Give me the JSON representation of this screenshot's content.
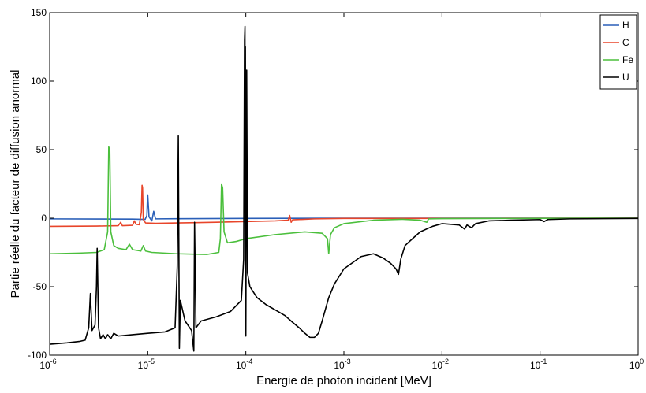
{
  "chart_data": {
    "type": "line",
    "xlabel": "Energie de photon incident [MeV]",
    "ylabel": "Partie réelle du facteur de diffusion anormal",
    "xscale": "log",
    "xlim": [
      1e-06,
      1
    ],
    "ylim": [
      -100,
      150
    ],
    "x_ticks": [
      {
        "base": "10",
        "exp": "-6"
      },
      {
        "base": "10",
        "exp": "-5"
      },
      {
        "base": "10",
        "exp": "-4"
      },
      {
        "base": "10",
        "exp": "-3"
      },
      {
        "base": "10",
        "exp": "-2"
      },
      {
        "base": "10",
        "exp": "-1"
      },
      {
        "base": "10",
        "exp": "0"
      }
    ],
    "y_ticks": [
      "-100",
      "-50",
      "0",
      "50",
      "100",
      "150"
    ],
    "grid": false,
    "legend_position": "top-right",
    "series": [
      {
        "name": "H",
        "color": "#2a5fb8",
        "points": [
          [
            1e-06,
            -0.5
          ],
          [
            3e-06,
            -0.6
          ],
          [
            7e-06,
            -0.7
          ],
          [
            9.4e-06,
            -0.9
          ],
          [
            9.8e-06,
            2
          ],
          [
            9.95e-06,
            17
          ],
          [
            1e-05,
            17
          ],
          [
            1.03e-05,
            1
          ],
          [
            1.1e-05,
            -2
          ],
          [
            1.15e-05,
            5
          ],
          [
            1.2e-05,
            -0.5
          ],
          [
            2e-05,
            -0.4
          ],
          [
            0.0001,
            -0.2
          ],
          [
            0.0003,
            -0.1
          ],
          [
            0.001,
            -0.05
          ],
          [
            1,
            0
          ]
        ]
      },
      {
        "name": "C",
        "color": "#e8452a",
        "points": [
          [
            1e-06,
            -6
          ],
          [
            3e-06,
            -5.8
          ],
          [
            5e-06,
            -5.5
          ],
          [
            5.3e-06,
            -3
          ],
          [
            5.5e-06,
            -5.5
          ],
          [
            7e-06,
            -5.2
          ],
          [
            7.3e-06,
            -2
          ],
          [
            7.6e-06,
            -4.5
          ],
          [
            8.2e-06,
            -4.8
          ],
          [
            8.6e-06,
            4
          ],
          [
            8.75e-06,
            24
          ],
          [
            8.85e-06,
            22
          ],
          [
            9e-06,
            -1
          ],
          [
            9.5e-06,
            -3.5
          ],
          [
            1.2e-05,
            -3.8
          ],
          [
            2e-05,
            -3.5
          ],
          [
            5e-05,
            -3
          ],
          [
            0.0001,
            -2.5
          ],
          [
            0.0002,
            -2
          ],
          [
            0.00027,
            -1.5
          ],
          [
            0.00028,
            2
          ],
          [
            0.00029,
            -3
          ],
          [
            0.0003,
            -1.2
          ],
          [
            0.0005,
            -0.5
          ],
          [
            0.001,
            -0.2
          ],
          [
            1,
            0
          ]
        ]
      },
      {
        "name": "Fe",
        "color": "#4bbf3c",
        "points": [
          [
            1e-06,
            -26
          ],
          [
            2e-06,
            -25.5
          ],
          [
            3e-06,
            -25
          ],
          [
            3.6e-06,
            -23
          ],
          [
            3.9e-06,
            -10
          ],
          [
            4e-06,
            52
          ],
          [
            4.1e-06,
            50
          ],
          [
            4.2e-06,
            -10
          ],
          [
            4.5e-06,
            -20
          ],
          [
            5e-06,
            -22
          ],
          [
            6e-06,
            -23
          ],
          [
            6.5e-06,
            -19
          ],
          [
            7e-06,
            -23
          ],
          [
            8.5e-06,
            -24
          ],
          [
            9e-06,
            -20
          ],
          [
            9.5e-06,
            -24
          ],
          [
            1.1e-05,
            -25
          ],
          [
            2e-05,
            -26
          ],
          [
            4e-05,
            -26.5
          ],
          [
            5.3e-05,
            -25
          ],
          [
            5.5e-05,
            -15
          ],
          [
            5.65e-05,
            25
          ],
          [
            5.8e-05,
            22
          ],
          [
            6e-05,
            -10
          ],
          [
            6.5e-05,
            -18
          ],
          [
            8e-05,
            -17
          ],
          [
            0.0001,
            -15
          ],
          [
            0.0002,
            -12
          ],
          [
            0.0004,
            -10
          ],
          [
            0.0006,
            -11
          ],
          [
            0.00068,
            -15
          ],
          [
            0.0007,
            -26
          ],
          [
            0.00073,
            -12
          ],
          [
            0.0008,
            -7
          ],
          [
            0.001,
            -4
          ],
          [
            0.002,
            -1.5
          ],
          [
            0.004,
            -0.8
          ],
          [
            0.006,
            -1.5
          ],
          [
            0.007,
            -3
          ],
          [
            0.0073,
            -0.5
          ],
          [
            0.01,
            -0.3
          ],
          [
            1,
            0
          ]
        ]
      },
      {
        "name": "U",
        "color": "#000000",
        "points": [
          [
            1e-06,
            -92
          ],
          [
            1.5e-06,
            -91
          ],
          [
            2e-06,
            -90
          ],
          [
            2.3e-06,
            -89
          ],
          [
            2.5e-06,
            -80
          ],
          [
            2.6e-06,
            -55
          ],
          [
            2.7e-06,
            -82
          ],
          [
            2.9e-06,
            -78
          ],
          [
            3e-06,
            -50
          ],
          [
            3.05e-06,
            -22
          ],
          [
            3.15e-06,
            -80
          ],
          [
            3.3e-06,
            -88
          ],
          [
            3.5e-06,
            -85
          ],
          [
            3.7e-06,
            -88
          ],
          [
            3.9e-06,
            -85
          ],
          [
            4.2e-06,
            -88
          ],
          [
            4.5e-06,
            -84
          ],
          [
            5e-06,
            -86
          ],
          [
            7e-06,
            -85
          ],
          [
            1e-05,
            -84
          ],
          [
            1.5e-05,
            -83
          ],
          [
            1.9e-05,
            -80
          ],
          [
            2e-05,
            -35
          ],
          [
            2.05e-05,
            60
          ],
          [
            2.1e-05,
            -95
          ],
          [
            2.15e-05,
            -60
          ],
          [
            2.4e-05,
            -75
          ],
          [
            2.8e-05,
            -82
          ],
          [
            2.95e-05,
            -97
          ],
          [
            3e-05,
            -3
          ],
          [
            3.1e-05,
            -80
          ],
          [
            3.5e-05,
            -75
          ],
          [
            5e-05,
            -72
          ],
          [
            7e-05,
            -68
          ],
          [
            9e-05,
            -60
          ],
          [
            9.5e-05,
            -30
          ],
          [
            9.7e-05,
            130
          ],
          [
            9.8e-05,
            140
          ],
          [
            9.85e-05,
            -80
          ],
          [
            9.9e-05,
            125
          ],
          [
            0.0001,
            -86
          ],
          [
            0.000102,
            108
          ],
          [
            0.000104,
            -40
          ],
          [
            0.00011,
            -50
          ],
          [
            0.00013,
            -58
          ],
          [
            0.00016,
            -63
          ],
          [
            0.0002,
            -67
          ],
          [
            0.00025,
            -71
          ],
          [
            0.0003,
            -76
          ],
          [
            0.00035,
            -80
          ],
          [
            0.0004,
            -84
          ],
          [
            0.00045,
            -87
          ],
          [
            0.0005,
            -87
          ],
          [
            0.00055,
            -84
          ],
          [
            0.0006,
            -75
          ],
          [
            0.0007,
            -58
          ],
          [
            0.0008,
            -48
          ],
          [
            0.001,
            -37
          ],
          [
            0.0015,
            -28
          ],
          [
            0.002,
            -26
          ],
          [
            0.0025,
            -29
          ],
          [
            0.003,
            -33
          ],
          [
            0.0034,
            -37
          ],
          [
            0.0036,
            -41
          ],
          [
            0.0038,
            -30
          ],
          [
            0.0042,
            -20
          ],
          [
            0.005,
            -15
          ],
          [
            0.006,
            -10
          ],
          [
            0.008,
            -6
          ],
          [
            0.01,
            -4
          ],
          [
            0.015,
            -5
          ],
          [
            0.017,
            -8
          ],
          [
            0.018,
            -5
          ],
          [
            0.02,
            -7
          ],
          [
            0.022,
            -4
          ],
          [
            0.03,
            -2
          ],
          [
            0.05,
            -1.5
          ],
          [
            0.1,
            -1
          ],
          [
            0.11,
            -2.5
          ],
          [
            0.12,
            -1
          ],
          [
            0.2,
            -0.5
          ],
          [
            1,
            -0.2
          ]
        ]
      }
    ]
  }
}
